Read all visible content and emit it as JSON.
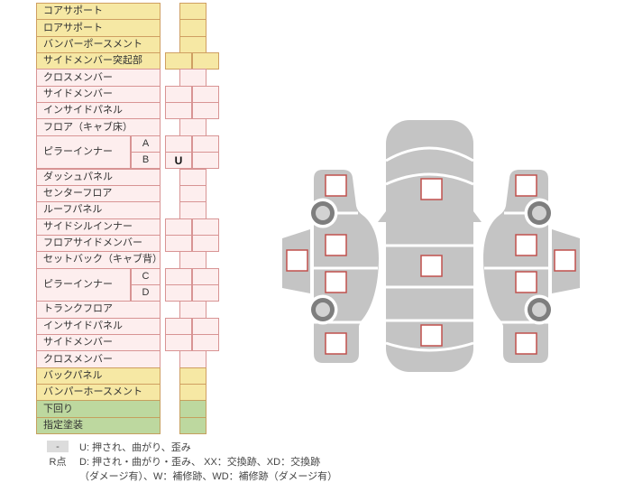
{
  "colors": {
    "yellow_fill": "#f6e8a4",
    "yellow_border": "#cf9f62",
    "pink_fill": "#fdeeee",
    "pink_border": "#d89494",
    "green_fill": "#bdd89f",
    "green_border": "#c5a05f",
    "marker_border": "#c0504d",
    "car_body": "#c4c4c4",
    "wheel_ring": "#7e7e7e",
    "wheel_hub": "#d2d2d2",
    "badge_bg": "#dcdcdc"
  },
  "table": {
    "rows": [
      {
        "label": "コアサポート",
        "color": "yellow",
        "cells": "single"
      },
      {
        "label": "ロアサポート",
        "color": "yellow",
        "cells": "single"
      },
      {
        "label": "バンパーポースメント",
        "color": "yellow",
        "cells": "single"
      },
      {
        "label": "サイドメンバー突起部",
        "color": "yellow",
        "cells": "double"
      },
      {
        "label": "クロスメンバー",
        "color": "pink",
        "cells": "single"
      },
      {
        "label": "サイドメンバー",
        "color": "pink",
        "cells": "double"
      },
      {
        "label": "インサイドパネル",
        "color": "pink",
        "cells": "double"
      },
      {
        "label": "フロア（キャブ床）",
        "color": "pink",
        "cells": "single"
      },
      {
        "label": "ピラーインナー",
        "sub": "A",
        "span_start": true,
        "color": "pink",
        "cells": "double"
      },
      {
        "sub": "B",
        "span_cont": true,
        "color": "pink",
        "cells": "double",
        "values": [
          "U",
          ""
        ]
      },
      {
        "label": "ダッシュパネル",
        "color": "pink",
        "cells": "single"
      },
      {
        "label": "センターフロア",
        "color": "pink",
        "cells": "single"
      },
      {
        "label": "ルーフパネル",
        "color": "pink",
        "cells": "single"
      },
      {
        "label": "サイドシルインナー",
        "color": "pink",
        "cells": "double"
      },
      {
        "label": "フロアサイドメンバー",
        "color": "pink",
        "cells": "double"
      },
      {
        "label": "セットバック（キャブ背）",
        "color": "pink",
        "cells": "single"
      },
      {
        "label": "ピラーインナー",
        "sub": "C",
        "span_start": true,
        "color": "pink",
        "cells": "double"
      },
      {
        "sub": "D",
        "span_cont": true,
        "color": "pink",
        "cells": "double"
      },
      {
        "label": "トランクフロア",
        "color": "pink",
        "cells": "single"
      },
      {
        "label": "インサイドパネル",
        "color": "pink",
        "cells": "double"
      },
      {
        "label": "サイドメンバー",
        "color": "pink",
        "cells": "double"
      },
      {
        "label": "クロスメンバー",
        "color": "pink",
        "cells": "single"
      },
      {
        "label": "バックパネル",
        "color": "yellow",
        "cells": "single"
      },
      {
        "label": "バンパーホースメント",
        "color": "yellow",
        "cells": "single"
      },
      {
        "label": "下回り",
        "color": "green",
        "cells": "single"
      },
      {
        "label": "指定塗装",
        "color": "green",
        "cells": "single"
      }
    ]
  },
  "legend": {
    "items": [
      {
        "symbol": "-",
        "badge": true,
        "text": "U: 押され、曲がり、歪み"
      },
      {
        "symbol": "R点",
        "badge": false,
        "text": "D: 押され・曲がり・歪み、 XX：交換跡、XD：交換跡",
        "text2": "（ダメージ有）、W：補修跡、WD：補修跡（ダメージ有）"
      }
    ]
  },
  "diagram": {
    "views": [
      "left-side-view",
      "top-view",
      "right-side-view"
    ],
    "markers": [
      "left-fender-front",
      "left-sill",
      "left-door-front",
      "left-door-rear",
      "left-fender-rear",
      "top-hood",
      "top-roof",
      "top-trunk",
      "right-fender-front",
      "right-sill",
      "right-door-front",
      "right-door-rear",
      "right-fender-rear"
    ]
  }
}
